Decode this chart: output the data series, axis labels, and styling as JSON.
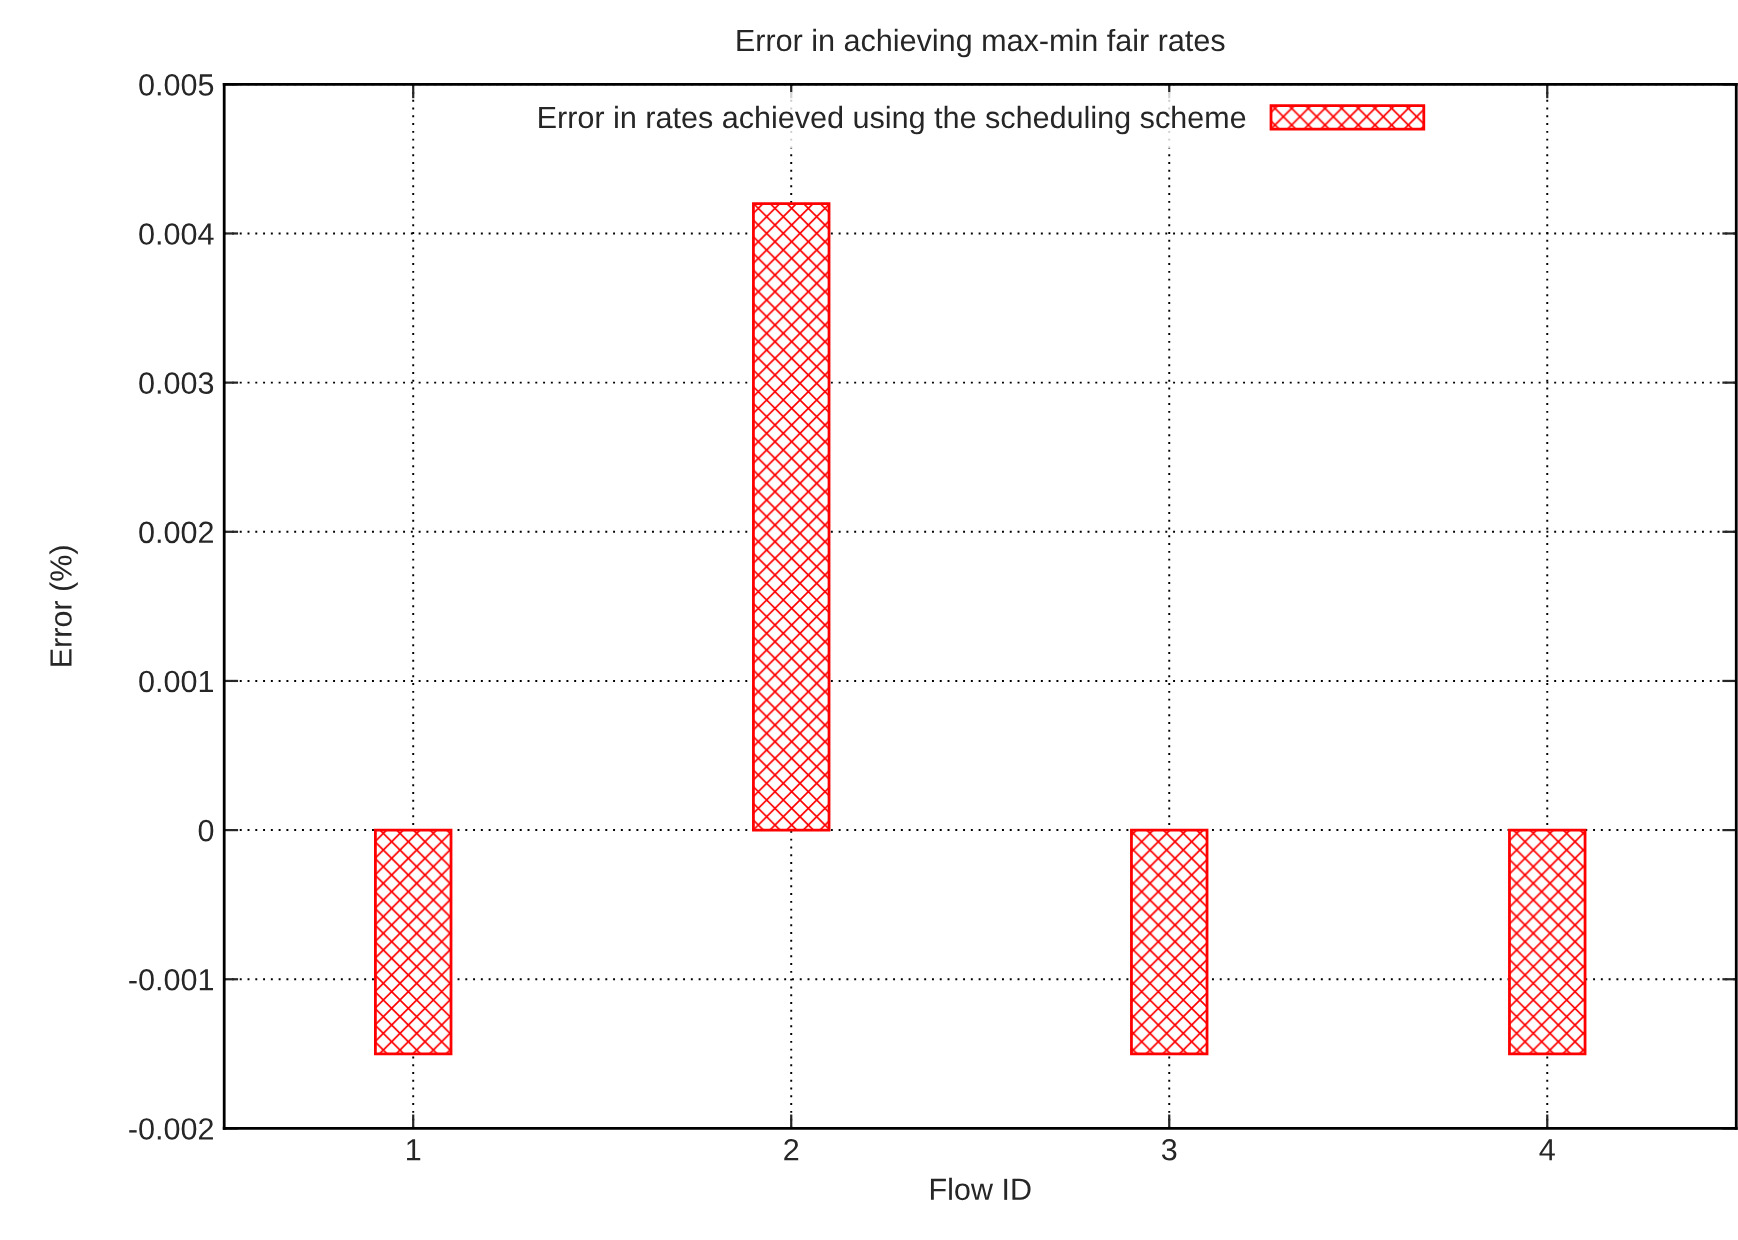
{
  "chart_data": {
    "type": "bar",
    "title": "Error in achieving max-min fair rates",
    "xlabel": "Flow ID",
    "ylabel": "Error (%)",
    "categories": [
      "1",
      "2",
      "3",
      "4"
    ],
    "series": [
      {
        "name": "Error in rates achieved using the scheduling scheme",
        "color": "#ff0000",
        "values": [
          -0.0015,
          0.0042,
          -0.0015,
          -0.0015
        ]
      }
    ],
    "ylim": [
      -0.002,
      0.005
    ],
    "yticks": [
      -0.002,
      -0.001,
      0,
      0.001,
      0.002,
      0.003,
      0.004,
      0.005
    ],
    "grid": true,
    "legend": "top"
  }
}
